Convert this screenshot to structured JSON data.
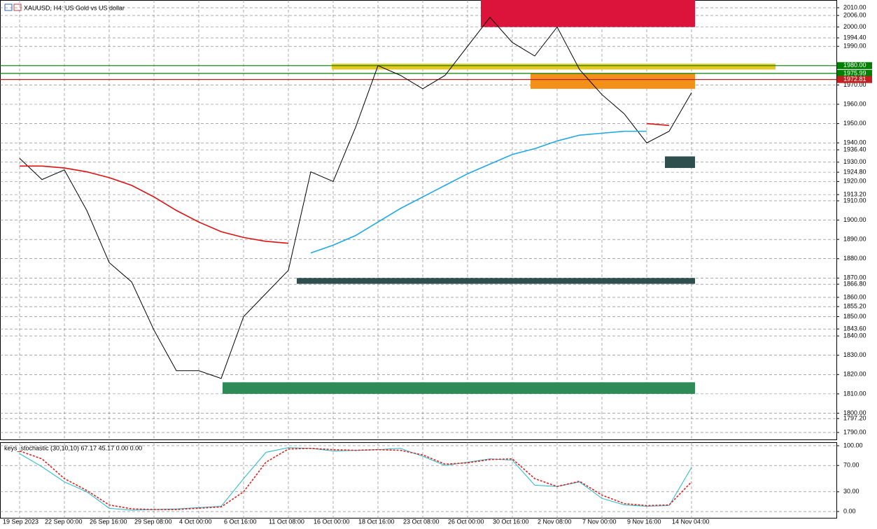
{
  "chart_data": [
    {
      "type": "line",
      "title": "XAUUSD, H4: US Gold vs US dollar",
      "grid": true,
      "categories": [
        "19 Sep 2023",
        null,
        "22 Sep 00:00",
        null,
        "26 Sep 16:00",
        null,
        "29 Sep 08:00",
        null,
        "4 Oct 00:00",
        null,
        "6 Oct 16:00",
        null,
        "11 Oct 08:00",
        null,
        "16 Oct 00:00",
        null,
        "18 Oct 16:00",
        null,
        "23 Oct 08:00",
        null,
        "26 Oct 00:00",
        null,
        "30 Oct 16:00",
        null,
        "2 Nov 08:00",
        null,
        "7 Nov 00:00",
        null,
        "9 Nov 16:00",
        null,
        "14 Nov 04:00"
      ],
      "series": [
        {
          "color": "#000000",
          "values": [
            1932,
            1921,
            1926,
            1905,
            1878,
            1868,
            1843,
            1822,
            1822,
            1818,
            1850,
            1862,
            1874,
            1925,
            1920,
            1948,
            1980,
            1975,
            1968,
            1975,
            1990,
            2005,
            1992,
            1985,
            2000,
            1978,
            1965,
            1955,
            1940,
            1946,
            1966
          ]
        },
        {
          "color": "#e01010",
          "values": [
            1928,
            1928,
            1927,
            1925,
            1922,
            1918,
            1912,
            1905,
            1899,
            1894,
            1891,
            1889,
            1888,
            null,
            null,
            null,
            null,
            null,
            null,
            null,
            null,
            null,
            null,
            null,
            null,
            null,
            null,
            null,
            1950,
            1949,
            null
          ]
        },
        {
          "color": "#1ea8e8",
          "values": [
            null,
            null,
            null,
            null,
            null,
            null,
            null,
            null,
            null,
            null,
            null,
            null,
            null,
            1883,
            1887,
            1892,
            1899,
            1906,
            1912,
            1918,
            1924,
            1929,
            1934,
            1937,
            1941,
            1944,
            1945,
            1946,
            1946,
            null,
            1942
          ]
        }
      ],
      "zones": [
        {
          "low": 2000,
          "high": 2014,
          "color": "#dc143c"
        },
        {
          "low": 1978,
          "high": 1981,
          "color": "#e6c81e"
        },
        {
          "low": 1968,
          "high": 1976,
          "color": "#f39019"
        },
        {
          "low": 1927,
          "high": 1933,
          "color": "#2f4f4f"
        },
        {
          "low": 1867,
          "high": 1870,
          "color": "#2f4f4f"
        },
        {
          "low": 1810,
          "high": 1816,
          "color": "#2e8b57"
        }
      ],
      "levels": [
        {
          "value": 1980,
          "label": "1980.00",
          "color": "#008000"
        },
        {
          "value": 1975.99,
          "label": "1975.99",
          "color": "#008000"
        },
        {
          "value": 1972.81,
          "label": "1972.81",
          "color": "#c02020"
        }
      ],
      "ylim": [
        1786.4,
        2014
      ],
      "yticks": [
        {
          "value": 2010,
          "label": "2010.00"
        },
        {
          "value": 2006,
          "label": "2006.00"
        },
        {
          "value": 2000,
          "label": "2000.00"
        },
        {
          "value": 1994.4,
          "label": "1994.40"
        },
        {
          "value": 1990,
          "label": "1990.00"
        },
        {
          "value": 1970,
          "label": "1970.00"
        },
        {
          "value": 1960,
          "label": "1960.00"
        },
        {
          "value": 1950,
          "label": "1950.00"
        },
        {
          "value": 1940,
          "label": "1940.00"
        },
        {
          "value": 1936.4,
          "label": "1936.40"
        },
        {
          "value": 1930,
          "label": "1930.00"
        },
        {
          "value": 1924.8,
          "label": "1924.80"
        },
        {
          "value": 1920,
          "label": "1920.00"
        },
        {
          "value": 1913.2,
          "label": "1913.20"
        },
        {
          "value": 1910,
          "label": "1910.00"
        },
        {
          "value": 1900,
          "label": "1900.00"
        },
        {
          "value": 1890,
          "label": "1890.00"
        },
        {
          "value": 1880,
          "label": "1880.00"
        },
        {
          "value": 1870,
          "label": "1870.00"
        },
        {
          "value": 1866.8,
          "label": "1866.80"
        },
        {
          "value": 1860,
          "label": "1860.00"
        },
        {
          "value": 1855.2,
          "label": "1855.20"
        },
        {
          "value": 1850,
          "label": "1850.00"
        },
        {
          "value": 1843.6,
          "label": "1843.60"
        },
        {
          "value": 1840,
          "label": "1840.00"
        },
        {
          "value": 1830,
          "label": "1830.00"
        },
        {
          "value": 1820,
          "label": "1820.00"
        },
        {
          "value": 1810,
          "label": "1810.00"
        },
        {
          "value": 1800,
          "label": "1800.00"
        },
        {
          "value": 1797.2,
          "label": "1797.20"
        },
        {
          "value": 1790,
          "label": "1790.00"
        }
      ]
    },
    {
      "type": "line",
      "title": "keys_stochastic (30,10,10) 67.17 45.17 0.00 0.00",
      "grid": true,
      "series": [
        {
          "color": "#20b8c8",
          "values": [
            88,
            68,
            45,
            30,
            5,
            2,
            3,
            4,
            6,
            8,
            50,
            90,
            97,
            96,
            92,
            93,
            94,
            96,
            84,
            70,
            75,
            80,
            78,
            40,
            38,
            45,
            20,
            10,
            8,
            9,
            67
          ]
        },
        {
          "color": "#e02020",
          "dashed": true,
          "values": [
            92,
            80,
            50,
            32,
            10,
            4,
            3,
            3,
            5,
            7,
            30,
            75,
            95,
            96,
            94,
            93,
            94,
            93,
            86,
            72,
            74,
            79,
            80,
            50,
            38,
            46,
            25,
            12,
            9,
            10,
            45
          ]
        }
      ],
      "ylim": [
        -10.6,
        105.3
      ],
      "yticks": [
        {
          "value": 100,
          "label": "100.00"
        },
        {
          "value": 70,
          "label": "70.00"
        },
        {
          "value": 30,
          "label": "30.00"
        },
        {
          "value": 0,
          "label": "0.00"
        }
      ]
    }
  ]
}
